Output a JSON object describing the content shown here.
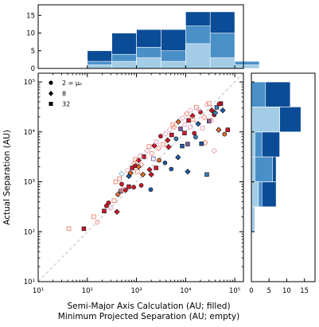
{
  "chart_data": {
    "type": "scatter",
    "xlabel": [
      "Semi-Major Axis Calculation  (AU; filled)",
      "Minimum Projected Separation  (AU; empty)"
    ],
    "ylabel": "Actual Separation  (AU)",
    "x_scale": "log",
    "y_scale": "log",
    "xlim": [
      10,
      150000
    ],
    "ylim": [
      10,
      150000
    ],
    "x_ticks": [
      {
        "value": 10,
        "label": "10¹"
      },
      {
        "value": 100,
        "label": "10²"
      },
      {
        "value": 1000,
        "label": "10³"
      },
      {
        "value": 10000,
        "label": "10⁴"
      },
      {
        "value": 100000,
        "label": "10⁵"
      }
    ],
    "y_ticks": [
      {
        "value": 10,
        "label": "10¹"
      },
      {
        "value": 100,
        "label": "10²"
      },
      {
        "value": 1000,
        "label": "10³"
      },
      {
        "value": 10000,
        "label": "10⁴"
      },
      {
        "value": 100000,
        "label": "10⁵"
      }
    ],
    "reference_line": "y = x (dashed gray)",
    "grid": false,
    "legend": {
      "placement": "top-left",
      "entries": [
        {
          "marker": "circle",
          "label": "2 = μₑ"
        },
        {
          "marker": "diamond",
          "label": "8"
        },
        {
          "marker": "square",
          "label": "32"
        }
      ]
    },
    "colors": {
      "red": "#d0182a",
      "salmon": "#f08070",
      "pink": "#e8a0c0",
      "purple": "#7a5aa8",
      "blue": "#1f5aa6",
      "steel": "#3d7fb5",
      "orange": "#e07030",
      "lightblue": "#7ab0d8",
      "hist_dark": "#0b4c96",
      "hist_mid": "#4a90c8",
      "hist_light": "#a3cde6",
      "reference": "#c0c0c0"
    },
    "points": [
      {
        "x": 85,
        "y": 115,
        "m": "square",
        "c": "red",
        "f": true
      },
      {
        "x": 42,
        "y": 115,
        "m": "square",
        "c": "salmon",
        "f": false
      },
      {
        "x": 160,
        "y": 155,
        "m": "circle",
        "c": "salmon",
        "f": false
      },
      {
        "x": 135,
        "y": 200,
        "m": "square",
        "c": "salmon",
        "f": false
      },
      {
        "x": 220,
        "y": 260,
        "m": "square",
        "c": "red",
        "f": true
      },
      {
        "x": 245,
        "y": 330,
        "m": "circle",
        "c": "red",
        "f": true
      },
      {
        "x": 270,
        "y": 380,
        "m": "circle",
        "c": "red",
        "f": true
      },
      {
        "x": 300,
        "y": 300,
        "m": "diamond",
        "c": "pink",
        "f": false
      },
      {
        "x": 350,
        "y": 420,
        "m": "square",
        "c": "salmon",
        "f": false
      },
      {
        "x": 400,
        "y": 250,
        "m": "diamond",
        "c": "red",
        "f": true
      },
      {
        "x": 420,
        "y": 560,
        "m": "diamond",
        "c": "orange",
        "f": true
      },
      {
        "x": 480,
        "y": 650,
        "m": "square",
        "c": "steel",
        "f": true
      },
      {
        "x": 520,
        "y": 700,
        "m": "diamond",
        "c": "salmon",
        "f": false
      },
      {
        "x": 560,
        "y": 720,
        "m": "square",
        "c": "pink",
        "f": false
      },
      {
        "x": 600,
        "y": 680,
        "m": "circle",
        "c": "red",
        "f": true
      },
      {
        "x": 450,
        "y": 1150,
        "m": "square",
        "c": "salmon",
        "f": false
      },
      {
        "x": 500,
        "y": 1450,
        "m": "diamond",
        "c": "lightblue",
        "f": false
      },
      {
        "x": 650,
        "y": 1700,
        "m": "circle",
        "c": "pink",
        "f": false
      },
      {
        "x": 700,
        "y": 1300,
        "m": "diamond",
        "c": "blue",
        "f": true
      },
      {
        "x": 760,
        "y": 1500,
        "m": "diamond",
        "c": "orange",
        "f": true
      },
      {
        "x": 820,
        "y": 1900,
        "m": "square",
        "c": "red",
        "f": true
      },
      {
        "x": 900,
        "y": 2300,
        "m": "diamond",
        "c": "salmon",
        "f": false
      },
      {
        "x": 950,
        "y": 2100,
        "m": "circle",
        "c": "red",
        "f": true
      },
      {
        "x": 1050,
        "y": 1600,
        "m": "square",
        "c": "salmon",
        "f": false
      },
      {
        "x": 1100,
        "y": 2700,
        "m": "diamond",
        "c": "red",
        "f": true
      },
      {
        "x": 1250,
        "y": 2200,
        "m": "diamond",
        "c": "salmon",
        "f": false
      },
      {
        "x": 1350,
        "y": 1400,
        "m": "diamond",
        "c": "orange",
        "f": true
      },
      {
        "x": 1500,
        "y": 3100,
        "m": "circle",
        "c": "pink",
        "f": false
      },
      {
        "x": 1650,
        "y": 4200,
        "m": "diamond",
        "c": "pink",
        "f": false
      },
      {
        "x": 1850,
        "y": 1750,
        "m": "diamond",
        "c": "red",
        "f": true
      },
      {
        "x": 2050,
        "y": 3700,
        "m": "circle",
        "c": "salmon",
        "f": false
      },
      {
        "x": 2300,
        "y": 5300,
        "m": "diamond",
        "c": "red",
        "f": true
      },
      {
        "x": 2550,
        "y": 6300,
        "m": "square",
        "c": "pink",
        "f": false
      },
      {
        "x": 2800,
        "y": 4700,
        "m": "diamond",
        "c": "salmon",
        "f": false
      },
      {
        "x": 3100,
        "y": 8200,
        "m": "circle",
        "c": "red",
        "f": true
      },
      {
        "x": 3500,
        "y": 5600,
        "m": "square",
        "c": "salmon",
        "f": false
      },
      {
        "x": 3900,
        "y": 9200,
        "m": "diamond",
        "c": "pink",
        "f": false
      },
      {
        "x": 4300,
        "y": 6800,
        "m": "diamond",
        "c": "red",
        "f": true
      },
      {
        "x": 4700,
        "y": 11000,
        "m": "circle",
        "c": "pink",
        "f": false
      },
      {
        "x": 5200,
        "y": 8700,
        "m": "square",
        "c": "red",
        "f": true
      },
      {
        "x": 5800,
        "y": 12500,
        "m": "diamond",
        "c": "salmon",
        "f": false
      },
      {
        "x": 6400,
        "y": 7300,
        "m": "circle",
        "c": "steel",
        "f": true
      },
      {
        "x": 7100,
        "y": 16000,
        "m": "diamond",
        "c": "orange",
        "f": true
      },
      {
        "x": 7900,
        "y": 11500,
        "m": "square",
        "c": "purple",
        "f": true
      },
      {
        "x": 8700,
        "y": 19000,
        "m": "diamond",
        "c": "pink",
        "f": false
      },
      {
        "x": 9600,
        "y": 14000,
        "m": "circle",
        "c": "pink",
        "f": false
      },
      {
        "x": 10500,
        "y": 23000,
        "m": "diamond",
        "c": "salmon",
        "f": false
      },
      {
        "x": 11500,
        "y": 17000,
        "m": "square",
        "c": "red",
        "f": true
      },
      {
        "x": 12500,
        "y": 27000,
        "m": "circle",
        "c": "pink",
        "f": false
      },
      {
        "x": 13800,
        "y": 21000,
        "m": "diamond",
        "c": "red",
        "f": true
      },
      {
        "x": 15000,
        "y": 9400,
        "m": "circle",
        "c": "red",
        "f": true
      },
      {
        "x": 16500,
        "y": 31000,
        "m": "square",
        "c": "salmon",
        "f": false
      },
      {
        "x": 18000,
        "y": 14500,
        "m": "diamond",
        "c": "blue",
        "f": true
      },
      {
        "x": 20000,
        "y": 25000,
        "m": "circle",
        "c": "red",
        "f": true
      },
      {
        "x": 22000,
        "y": 12000,
        "m": "square",
        "c": "pink",
        "f": false
      },
      {
        "x": 24000,
        "y": 19500,
        "m": "diamond",
        "c": "salmon",
        "f": false
      },
      {
        "x": 27000,
        "y": 35000,
        "m": "circle",
        "c": "pink",
        "f": false
      },
      {
        "x": 30000,
        "y": 16500,
        "m": "square",
        "c": "purple",
        "f": true
      },
      {
        "x": 34000,
        "y": 27000,
        "m": "diamond",
        "c": "red",
        "f": true
      },
      {
        "x": 38000,
        "y": 22000,
        "m": "circle",
        "c": "red",
        "f": true
      },
      {
        "x": 43000,
        "y": 31000,
        "m": "square",
        "c": "steel",
        "f": true
      },
      {
        "x": 47000,
        "y": 11000,
        "m": "diamond",
        "c": "orange",
        "f": true
      },
      {
        "x": 52000,
        "y": 37000,
        "m": "square",
        "c": "red",
        "f": true
      },
      {
        "x": 57000,
        "y": 27000,
        "m": "diamond",
        "c": "blue",
        "f": true
      },
      {
        "x": 72000,
        "y": 11000,
        "m": "square",
        "c": "red",
        "f": true
      },
      {
        "x": 30000,
        "y": 37000,
        "m": "square",
        "c": "salmon",
        "f": false
      },
      {
        "x": 8500,
        "y": 5200,
        "m": "square",
        "c": "blue",
        "f": true
      },
      {
        "x": 1800,
        "y": 5100,
        "m": "square",
        "c": "salmon",
        "f": false
      },
      {
        "x": 1950,
        "y": 700,
        "m": "circle",
        "c": "blue",
        "f": true
      },
      {
        "x": 3800,
        "y": 2400,
        "m": "circle",
        "c": "blue",
        "f": true
      },
      {
        "x": 5100,
        "y": 1800,
        "m": "circle",
        "c": "blue",
        "f": true
      },
      {
        "x": 7000,
        "y": 3100,
        "m": "diamond",
        "c": "blue",
        "f": true
      },
      {
        "x": 11000,
        "y": 5700,
        "m": "square",
        "c": "purple",
        "f": true
      },
      {
        "x": 16000,
        "y": 7900,
        "m": "circle",
        "c": "steel",
        "f": true
      },
      {
        "x": 25000,
        "y": 6100,
        "m": "diamond",
        "c": "salmon",
        "f": false
      },
      {
        "x": 27000,
        "y": 1400,
        "m": "square",
        "c": "steel",
        "f": true
      },
      {
        "x": 11000,
        "y": 1600,
        "m": "diamond",
        "c": "blue",
        "f": true
      },
      {
        "x": 5500,
        "y": 14000,
        "m": "square",
        "c": "salmon",
        "f": false
      },
      {
        "x": 4500,
        "y": 5000,
        "m": "diamond",
        "c": "red",
        "f": true
      },
      {
        "x": 2900,
        "y": 2700,
        "m": "circle",
        "c": "orange",
        "f": true
      },
      {
        "x": 2200,
        "y": 2900,
        "m": "square",
        "c": "purple",
        "f": false
      },
      {
        "x": 1400,
        "y": 3200,
        "m": "square",
        "c": "red",
        "f": true
      },
      {
        "x": 1200,
        "y": 3300,
        "m": "square",
        "c": "pink",
        "f": false
      },
      {
        "x": 950,
        "y": 2800,
        "m": "square",
        "c": "salmon",
        "f": false
      },
      {
        "x": 2500,
        "y": 1900,
        "m": "square",
        "c": "red",
        "f": true
      },
      {
        "x": 2000,
        "y": 1400,
        "m": "diamond",
        "c": "red",
        "f": true
      },
      {
        "x": 1100,
        "y": 2000,
        "m": "diamond",
        "c": "orange",
        "f": true
      },
      {
        "x": 380,
        "y": 1000,
        "m": "square",
        "c": "salmon",
        "f": false
      },
      {
        "x": 450,
        "y": 600,
        "m": "circle",
        "c": "salmon",
        "f": false
      },
      {
        "x": 500,
        "y": 900,
        "m": "circle",
        "c": "red",
        "f": true
      },
      {
        "x": 700,
        "y": 800,
        "m": "square",
        "c": "red",
        "f": true
      },
      {
        "x": 880,
        "y": 780,
        "m": "circle",
        "c": "red",
        "f": true
      },
      {
        "x": 1250,
        "y": 850,
        "m": "circle",
        "c": "red",
        "f": true
      },
      {
        "x": 14000,
        "y": 18000,
        "m": "square",
        "c": "salmon",
        "f": false
      },
      {
        "x": 18500,
        "y": 28000,
        "m": "circle",
        "c": "pink",
        "f": false
      },
      {
        "x": 12500,
        "y": 12500,
        "m": "diamond",
        "c": "pink",
        "f": false
      },
      {
        "x": 9500,
        "y": 9500,
        "m": "square",
        "c": "red",
        "f": true
      },
      {
        "x": 33000,
        "y": 17000,
        "m": "circle",
        "c": "salmon",
        "f": false
      },
      {
        "x": 40000,
        "y": 24000,
        "m": "diamond",
        "c": "steel",
        "f": true
      },
      {
        "x": 48000,
        "y": 36000,
        "m": "circle",
        "c": "red",
        "f": true
      },
      {
        "x": 62000,
        "y": 9000,
        "m": "circle",
        "c": "orange",
        "f": true
      },
      {
        "x": 38000,
        "y": 4200,
        "m": "diamond",
        "c": "pink",
        "f": false
      },
      {
        "x": 21000,
        "y": 5800,
        "m": "square",
        "c": "blue",
        "f": true
      }
    ],
    "top_histogram": {
      "bin_edges_log10": [
        1,
        1.5,
        2,
        2.5,
        3,
        3.5,
        4,
        4.5,
        5,
        5.5
      ],
      "y_ticks": [
        0,
        5,
        10,
        15
      ],
      "ylim": [
        0,
        18
      ],
      "layers": [
        {
          "shade": "hist_light",
          "values": [
            0,
            0,
            1,
            2,
            3,
            2,
            7,
            3,
            1
          ]
        },
        {
          "shade": "hist_mid",
          "values": [
            0,
            0,
            2,
            4,
            6,
            5,
            12,
            10,
            2
          ]
        },
        {
          "shade": "hist_dark",
          "values": [
            0,
            0,
            5,
            10,
            11,
            11,
            16,
            16,
            2
          ]
        }
      ]
    },
    "right_histogram": {
      "bin_edges_log10": [
        1,
        1.5,
        2,
        2.5,
        3,
        3.5,
        4,
        4.5,
        5,
        5.5
      ],
      "x_ticks": [
        0,
        5,
        10,
        15
      ],
      "xlim": [
        0,
        18
      ],
      "layers": [
        {
          "shade": "hist_light",
          "values": [
            0,
            0,
            1,
            2,
            1,
            1,
            8,
            0,
            0
          ]
        },
        {
          "shade": "hist_mid",
          "values": [
            0,
            0,
            1,
            3,
            6,
            3,
            8,
            4,
            0
          ]
        },
        {
          "shade": "hist_dark",
          "values": [
            0,
            0,
            1,
            7,
            7,
            8,
            14,
            11,
            0
          ]
        }
      ]
    }
  }
}
